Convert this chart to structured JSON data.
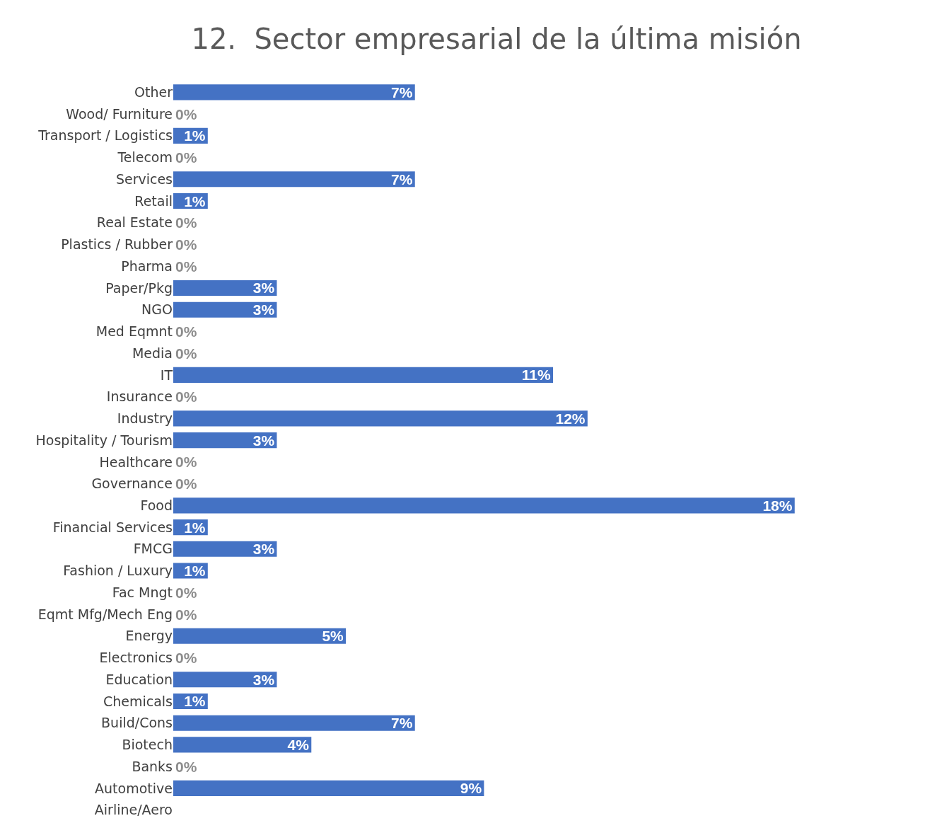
{
  "chart_data": {
    "type": "bar",
    "orientation": "horizontal",
    "title": "12.  Sector empresarial de la última misión",
    "categories": [
      "Other",
      "Wood/ Furniture",
      "Transport / Logistics",
      "Telecom",
      "Services",
      "Retail",
      "Real Estate",
      "Plastics / Rubber",
      "Pharma",
      "Paper/Pkg",
      "NGO",
      "Med Eqmnt",
      "Media",
      "IT",
      "Insurance",
      "Industry",
      "Hospitality / Tourism",
      "Healthcare",
      "Governance",
      "Food",
      "Financial Services",
      "FMCG",
      "Fashion / Luxury",
      "Fac Mngt",
      "Eqmt Mfg/Mech Eng",
      "Energy",
      "Electronics",
      "Education",
      "Chemicals",
      "Build/Cons",
      "Biotech",
      "Banks",
      "Automotive",
      "Airline/Aero"
    ],
    "values": [
      7,
      0,
      1,
      0,
      7,
      1,
      0,
      0,
      0,
      3,
      3,
      0,
      0,
      11,
      0,
      12,
      3,
      0,
      0,
      18,
      1,
      3,
      1,
      0,
      0,
      5,
      0,
      3,
      1,
      7,
      4,
      0,
      9,
      0
    ],
    "value_labels": [
      "7%",
      "0%",
      "1%",
      "0%",
      "7%",
      "1%",
      "0%",
      "0%",
      "0%",
      "3%",
      "3%",
      "0%",
      "0%",
      "11%",
      "0%",
      "12%",
      "3%",
      "0%",
      "0%",
      "18%",
      "1%",
      "3%",
      "1%",
      "0%",
      "0%",
      "5%",
      "0%",
      "3%",
      "1%",
      "7%",
      "4%",
      "0%",
      "9%",
      null
    ],
    "color": "#4472c4"
  }
}
